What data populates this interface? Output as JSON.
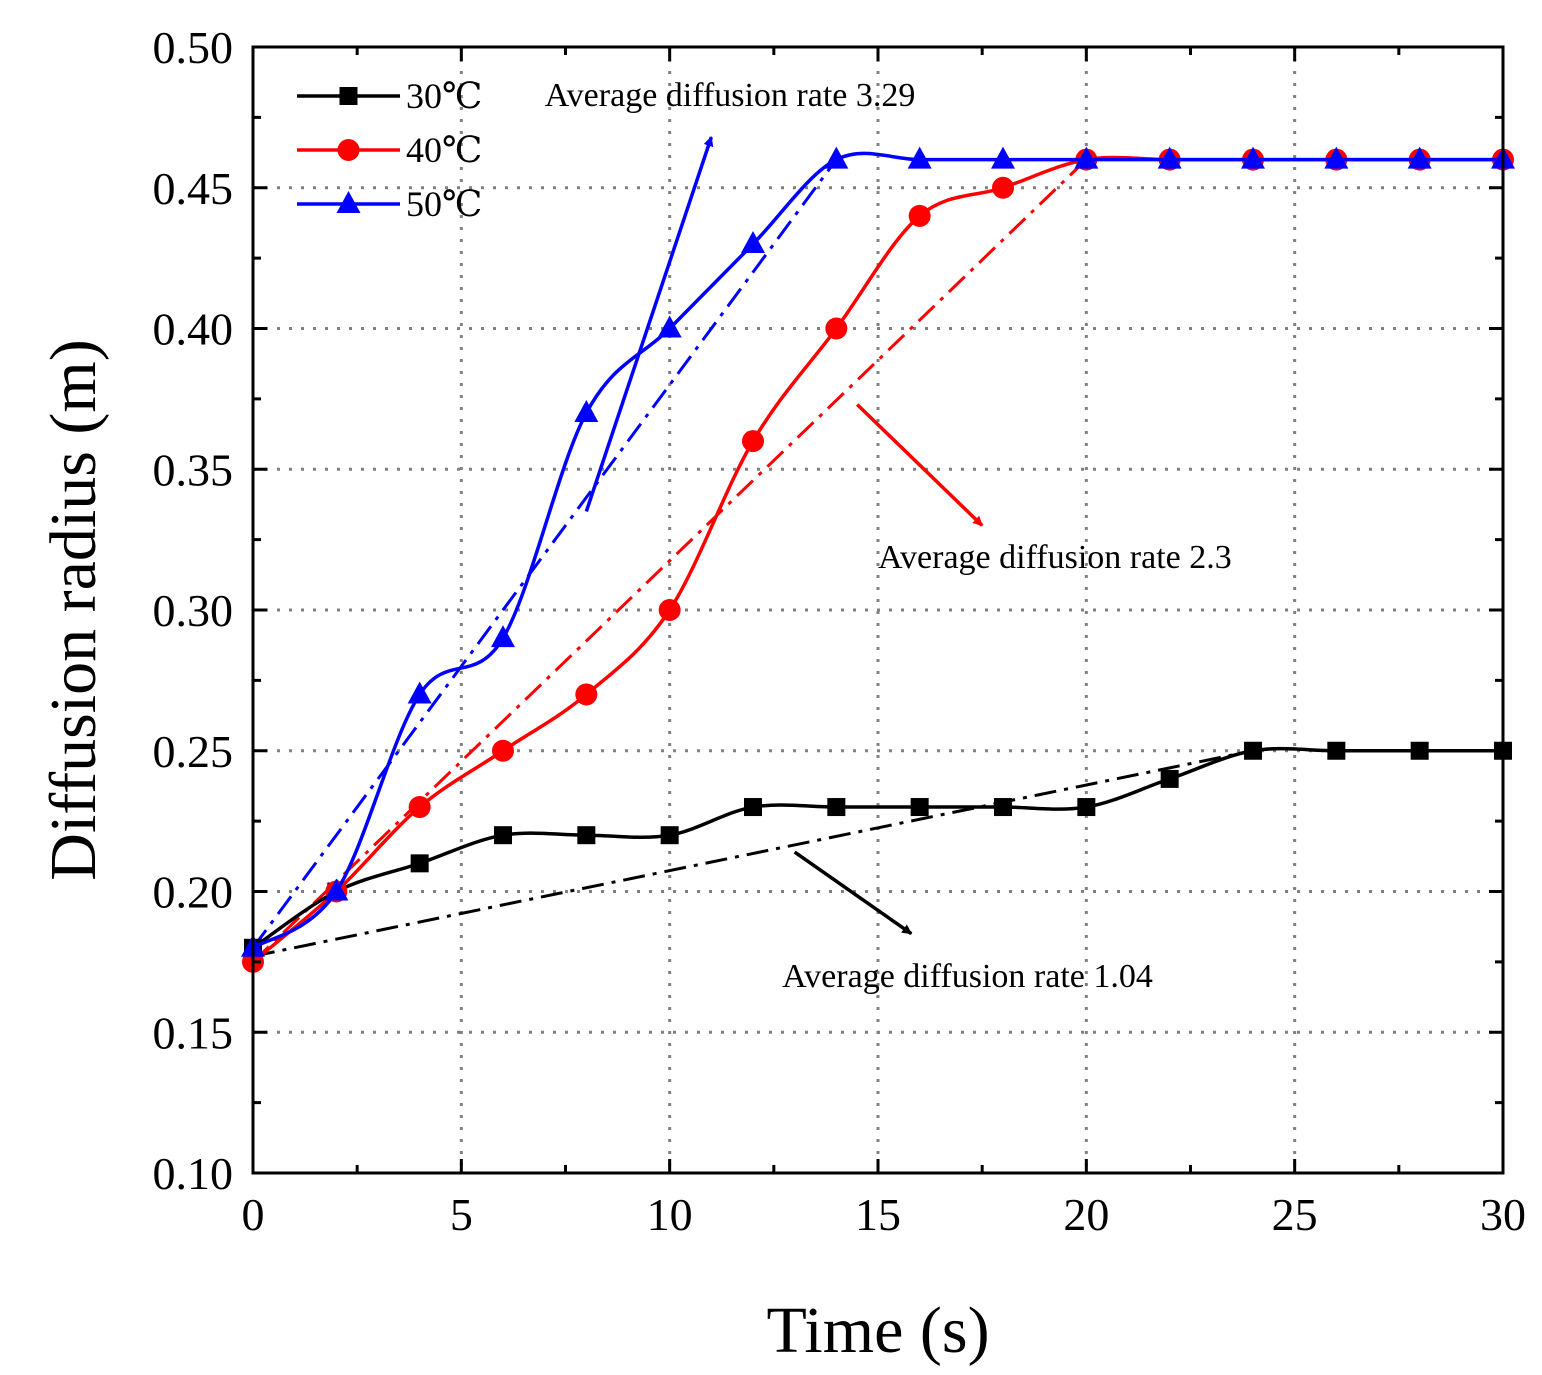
{
  "chart_data": {
    "type": "line",
    "xlabel": "Time (s)",
    "ylabel": "Diffusion radius (m)",
    "xlim": [
      0,
      30
    ],
    "ylim": [
      0.1,
      0.5
    ],
    "xticks": [
      0,
      5,
      10,
      15,
      20,
      25,
      30
    ],
    "xtick_labels": [
      "0",
      "5",
      "10",
      "15",
      "20",
      "25",
      "30"
    ],
    "yticks": [
      0.1,
      0.15,
      0.2,
      0.25,
      0.3,
      0.35,
      0.4,
      0.45,
      0.5
    ],
    "ytick_labels": [
      "0.10",
      "0.15",
      "0.20",
      "0.25",
      "0.30",
      "0.35",
      "0.40",
      "0.45",
      "0.50"
    ],
    "grid": true,
    "legend_position": "top-left",
    "series": [
      {
        "name": "30℃",
        "color": "#000000",
        "marker": "square",
        "x": [
          0,
          2,
          4,
          6,
          8,
          10,
          12,
          14,
          16,
          18,
          20,
          22,
          24,
          26,
          28,
          30
        ],
        "values": [
          0.18,
          0.2,
          0.21,
          0.22,
          0.22,
          0.22,
          0.23,
          0.23,
          0.23,
          0.23,
          0.23,
          0.24,
          0.25,
          0.25,
          0.25,
          0.25
        ]
      },
      {
        "name": "40℃",
        "color": "#ff0000",
        "marker": "circle",
        "x": [
          0,
          2,
          4,
          6,
          8,
          10,
          12,
          14,
          16,
          18,
          20,
          22,
          24,
          26,
          28,
          30
        ],
        "values": [
          0.175,
          0.2,
          0.23,
          0.25,
          0.27,
          0.3,
          0.36,
          0.4,
          0.44,
          0.45,
          0.46,
          0.46,
          0.46,
          0.46,
          0.46,
          0.46
        ]
      },
      {
        "name": "50℃",
        "color": "#0000ff",
        "marker": "triangle",
        "x": [
          0,
          2,
          4,
          6,
          8,
          10,
          12,
          14,
          16,
          18,
          20,
          22,
          24,
          26,
          28,
          30
        ],
        "values": [
          0.18,
          0.2,
          0.27,
          0.29,
          0.37,
          0.4,
          0.43,
          0.46,
          0.46,
          0.46,
          0.46,
          0.46,
          0.46,
          0.46,
          0.46,
          0.46
        ]
      }
    ],
    "fit_lines": [
      {
        "name": "30℃ average trend",
        "color": "#000000",
        "x": [
          0,
          24
        ],
        "values": [
          0.177,
          0.25
        ]
      },
      {
        "name": "40℃ average trend",
        "color": "#ff0000",
        "x": [
          0,
          20
        ],
        "values": [
          0.175,
          0.46
        ]
      },
      {
        "name": "50℃ average trend",
        "color": "#0000ff",
        "x": [
          0,
          14
        ],
        "values": [
          0.18,
          0.46
        ]
      }
    ],
    "annotations": [
      {
        "text": "Average diffusion rate 3.29",
        "color": "#0000ff",
        "arrow_from": [
          8,
          0.335
        ],
        "arrow_to": [
          11,
          0.468
        ],
        "label_at": [
          7,
          0.479
        ]
      },
      {
        "text": "Average diffusion rate 2.3",
        "color": "#ff0000",
        "arrow_from": [
          14.5,
          0.373
        ],
        "arrow_to": [
          17.5,
          0.33
        ],
        "label_at": [
          15,
          0.315
        ]
      },
      {
        "text": "Average diffusion rate 1.04",
        "color": "#000000",
        "arrow_from": [
          13,
          0.214
        ],
        "arrow_to": [
          15.8,
          0.185
        ],
        "label_at": [
          12.7,
          0.166
        ]
      }
    ]
  }
}
